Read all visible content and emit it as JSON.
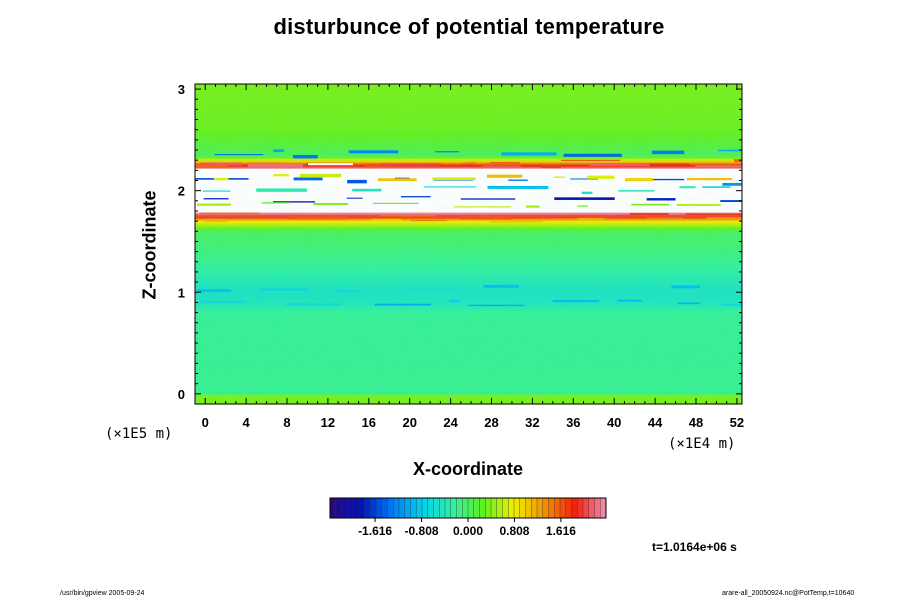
{
  "title": "disturbunce of potential temperature",
  "time_stamp": "t=1.0164e+06 s",
  "footer": {
    "left": "/usr/bin/gpview 2005-09-24",
    "right": "arare-all_20050924.nc@PotTemp,t=10640"
  },
  "chart_data": {
    "type": "heatmap",
    "title": "disturbunce of potential temperature",
    "xlabel": "X-coordinate",
    "ylabel": "Z-coordinate",
    "x_unit": "(×1E4 m)",
    "y_unit": "(×1E5 m)",
    "xlim": [
      -1,
      52.5
    ],
    "ylim": [
      -0.1,
      3.05
    ],
    "x_ticks": [
      0,
      4,
      8,
      12,
      16,
      20,
      24,
      28,
      32,
      36,
      40,
      44,
      48,
      52
    ],
    "y_ticks": [
      0,
      1,
      2,
      3
    ],
    "colorbar": {
      "ticks": [
        "-1.616",
        "-0.808",
        "0.000",
        "0.808",
        "1.616"
      ],
      "range": [
        -2.4,
        2.4
      ],
      "colors": [
        "#2b0a70",
        "#0010c0",
        "#0078f0",
        "#00d0f0",
        "#30f0a0",
        "#60f020",
        "#f0f000",
        "#f09000",
        "#f02010",
        "#f090b0"
      ]
    },
    "profile": {
      "z": [
        0.0,
        0.8,
        0.9,
        1.0,
        1.1,
        1.3,
        1.6,
        1.7,
        1.75,
        1.8,
        1.85,
        2.0,
        2.2,
        2.25,
        2.3,
        2.35,
        2.45,
        2.6,
        3.0
      ],
      "value": [
        -0.2,
        -0.22,
        -0.45,
        -0.5,
        -0.42,
        -0.2,
        0.0,
        0.8,
        1.9,
        2.6,
        2.6,
        2.6,
        2.6,
        1.9,
        0.8,
        0.0,
        0.15,
        0.3,
        0.35
      ],
      "saturation_note": "values above 2.4 drawn white"
    }
  }
}
